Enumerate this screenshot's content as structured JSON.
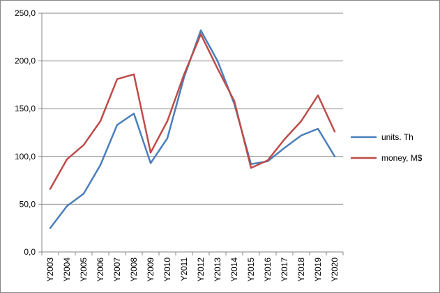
{
  "chart_data": {
    "type": "line",
    "title": "",
    "xlabel": "",
    "ylabel": "",
    "categories": [
      "Y2003",
      "Y2004",
      "Y2005",
      "Y2006",
      "Y2007",
      "Y2008",
      "Y2009",
      "Y2010",
      "Y2011",
      "Y2012",
      "Y2013",
      "Y2014",
      "Y2015",
      "Y2016",
      "Y2017",
      "Y2018",
      "Y2019",
      "Y2020"
    ],
    "ylim": [
      0,
      250
    ],
    "yticks": [
      "0,0",
      "50,0",
      "100,0",
      "150,0",
      "200,0",
      "250,0"
    ],
    "grid": true,
    "legend_position": "right",
    "series": [
      {
        "name": "units. Th",
        "color": "#4a7ebb",
        "values": [
          25,
          48,
          61,
          91,
          133,
          145,
          93,
          119,
          183,
          232,
          200,
          155,
          92,
          95,
          109,
          122,
          129,
          100
        ]
      },
      {
        "name": "money, M$",
        "color": "#be4b48",
        "values": [
          66,
          97,
          112,
          137,
          181,
          186,
          104,
          137,
          186,
          228,
          192,
          158,
          88,
          96,
          118,
          137,
          164,
          126
        ]
      }
    ]
  }
}
